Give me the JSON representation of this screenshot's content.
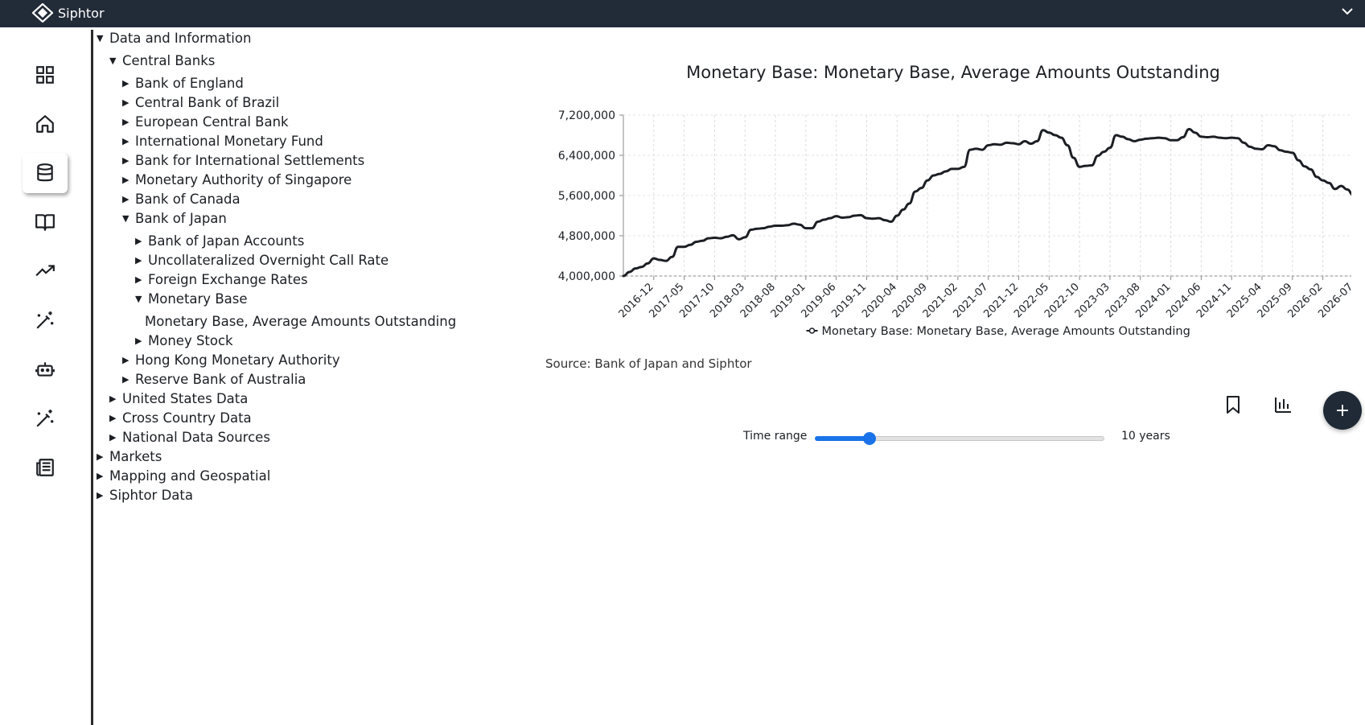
{
  "app": {
    "name": "Siphtor"
  },
  "sidebar": {
    "items": [
      {
        "icon": "grid-icon",
        "active": false
      },
      {
        "icon": "home-icon",
        "active": false
      },
      {
        "icon": "database-icon",
        "active": true
      },
      {
        "icon": "book-open-icon",
        "active": false
      },
      {
        "icon": "trending-up-icon",
        "active": false
      },
      {
        "icon": "magic-wand-icon",
        "active": false
      },
      {
        "icon": "robot-icon",
        "active": false
      },
      {
        "icon": "magic-wand-icon",
        "active": false
      },
      {
        "icon": "newspaper-icon",
        "active": false
      }
    ]
  },
  "tree": [
    {
      "label": "Data and Information",
      "depth": 0,
      "expanded": true,
      "leaf": false
    },
    {
      "label": "Central Banks",
      "depth": 1,
      "expanded": true,
      "leaf": false
    },
    {
      "label": "Bank of England",
      "depth": 2,
      "expanded": false,
      "leaf": false
    },
    {
      "label": "Central Bank of Brazil",
      "depth": 2,
      "expanded": false,
      "leaf": false
    },
    {
      "label": "European Central Bank",
      "depth": 2,
      "expanded": false,
      "leaf": false
    },
    {
      "label": "International Monetary Fund",
      "depth": 2,
      "expanded": false,
      "leaf": false
    },
    {
      "label": "Bank for International Settlements",
      "depth": 2,
      "expanded": false,
      "leaf": false
    },
    {
      "label": "Monetary Authority of Singapore",
      "depth": 2,
      "expanded": false,
      "leaf": false
    },
    {
      "label": "Bank of Canada",
      "depth": 2,
      "expanded": false,
      "leaf": false
    },
    {
      "label": "Bank of Japan",
      "depth": 2,
      "expanded": true,
      "leaf": false
    },
    {
      "label": "Bank of Japan Accounts",
      "depth": 3,
      "expanded": false,
      "leaf": false
    },
    {
      "label": "Uncollateralized Overnight Call Rate",
      "depth": 3,
      "expanded": false,
      "leaf": false
    },
    {
      "label": "Foreign Exchange Rates",
      "depth": 3,
      "expanded": false,
      "leaf": false
    },
    {
      "label": "Monetary Base",
      "depth": 3,
      "expanded": true,
      "leaf": false
    },
    {
      "label": "Monetary Base, Average Amounts Outstanding",
      "depth": 4,
      "expanded": false,
      "leaf": true
    },
    {
      "label": "Money Stock",
      "depth": 3,
      "expanded": false,
      "leaf": false
    },
    {
      "label": "Hong Kong Monetary Authority",
      "depth": 2,
      "expanded": false,
      "leaf": false
    },
    {
      "label": "Reserve Bank of Australia",
      "depth": 2,
      "expanded": false,
      "leaf": false
    },
    {
      "label": "United States Data",
      "depth": 1,
      "expanded": false,
      "leaf": false
    },
    {
      "label": "Cross Country Data",
      "depth": 1,
      "expanded": false,
      "leaf": false
    },
    {
      "label": "National Data Sources",
      "depth": 1,
      "expanded": false,
      "leaf": false
    },
    {
      "label": "Markets",
      "depth": 0,
      "expanded": false,
      "leaf": false
    },
    {
      "label": "Mapping and Geospatial",
      "depth": 0,
      "expanded": false,
      "leaf": false
    },
    {
      "label": "Siphtor Data",
      "depth": 0,
      "expanded": false,
      "leaf": false
    }
  ],
  "chart": {
    "source": "Source: Bank of Japan and Siphtor"
  },
  "controls": {
    "time_range_label": "Time range",
    "time_range_value": "10 years",
    "time_range_fraction": 0.19,
    "bookmark_icon": "bookmark-icon",
    "chart_icon": "bar-chart-icon",
    "add_icon": "plus-icon"
  },
  "colors": {
    "topbar": "#222b38",
    "line": "#1b1f24",
    "slider": "#1a73e8",
    "fab": "#1f2a36"
  },
  "chart_data": {
    "type": "line",
    "title": "Monetary Base: Monetary Base, Average Amounts Outstanding",
    "xlabel": "",
    "ylabel": "",
    "ylim": [
      4000000,
      7200000
    ],
    "yticks": [
      "4,000,000",
      "4,800,000",
      "5,600,000",
      "6,400,000",
      "7,200,000"
    ],
    "xticks": [
      "2016-12",
      "2017-05",
      "2017-10",
      "2018-03",
      "2018-08",
      "2019-01",
      "2019-06",
      "2019-11",
      "2020-04",
      "2020-09",
      "2021-02",
      "2021-07",
      "2021-12",
      "2022-05",
      "2022-10",
      "2023-03",
      "2023-08",
      "2024-01",
      "2024-06",
      "2024-11",
      "2025-04",
      "2025-09",
      "2026-02",
      "2026-07"
    ],
    "grid": "vertical-dashed",
    "legend": "bottom-center",
    "series": [
      {
        "name": "Monetary Base: Monetary Base, Average Amounts Outstanding",
        "x": [
          "2016-07",
          "2016-08",
          "2016-09",
          "2016-10",
          "2016-11",
          "2016-12",
          "2017-01",
          "2017-02",
          "2017-03",
          "2017-04",
          "2017-05",
          "2017-06",
          "2017-07",
          "2017-08",
          "2017-09",
          "2017-10",
          "2017-11",
          "2017-12",
          "2018-01",
          "2018-02",
          "2018-03",
          "2018-04",
          "2018-05",
          "2018-06",
          "2018-07",
          "2018-08",
          "2018-09",
          "2018-10",
          "2018-11",
          "2018-12",
          "2019-01",
          "2019-02",
          "2019-03",
          "2019-04",
          "2019-05",
          "2019-06",
          "2019-07",
          "2019-08",
          "2019-09",
          "2019-10",
          "2019-11",
          "2019-12",
          "2020-01",
          "2020-02",
          "2020-03",
          "2020-04",
          "2020-05",
          "2020-06",
          "2020-07",
          "2020-08",
          "2020-09",
          "2020-10",
          "2020-11",
          "2020-12",
          "2021-01",
          "2021-02",
          "2021-03",
          "2021-04",
          "2021-05",
          "2021-06",
          "2021-07",
          "2021-08",
          "2021-09",
          "2021-10",
          "2021-11",
          "2021-12",
          "2022-01",
          "2022-02",
          "2022-03",
          "2022-04",
          "2022-05",
          "2022-06",
          "2022-07",
          "2022-08",
          "2022-09",
          "2022-10",
          "2022-11",
          "2022-12",
          "2023-01",
          "2023-02",
          "2023-03",
          "2023-04",
          "2023-05",
          "2023-06",
          "2023-07",
          "2023-08",
          "2023-09",
          "2023-10",
          "2023-11",
          "2023-12",
          "2024-01",
          "2024-02",
          "2024-03",
          "2024-04",
          "2024-05",
          "2024-06",
          "2024-07",
          "2024-08",
          "2024-09",
          "2024-10",
          "2024-11",
          "2024-12",
          "2025-01",
          "2025-02",
          "2025-03",
          "2025-04",
          "2025-05",
          "2025-06",
          "2025-07",
          "2025-08",
          "2025-09",
          "2025-10",
          "2025-11",
          "2025-12",
          "2026-01",
          "2026-02",
          "2026-03",
          "2026-04",
          "2026-05",
          "2026-06",
          "2026-07",
          "2026-08"
        ],
        "values": [
          4000000,
          4080000,
          4150000,
          4180000,
          4250000,
          4350000,
          4320000,
          4300000,
          4380000,
          4580000,
          4580000,
          4620000,
          4680000,
          4700000,
          4750000,
          4760000,
          4750000,
          4780000,
          4810000,
          4730000,
          4770000,
          4920000,
          4940000,
          4950000,
          4980000,
          5000000,
          5000000,
          5010000,
          5040000,
          5020000,
          4950000,
          4950000,
          5080000,
          5120000,
          5150000,
          5190000,
          5160000,
          5170000,
          5200000,
          5210000,
          5150000,
          5140000,
          5150000,
          5110000,
          5080000,
          5200000,
          5320000,
          5440000,
          5680000,
          5750000,
          5900000,
          6000000,
          6030000,
          6080000,
          6130000,
          6130000,
          6170000,
          6510000,
          6530000,
          6510000,
          6600000,
          6620000,
          6610000,
          6650000,
          6640000,
          6620000,
          6680000,
          6630000,
          6680000,
          6900000,
          6850000,
          6800000,
          6750000,
          6600000,
          6350000,
          6170000,
          6190000,
          6200000,
          6390000,
          6470000,
          6550000,
          6800000,
          6770000,
          6720000,
          6680000,
          6710000,
          6730000,
          6740000,
          6750000,
          6740000,
          6700000,
          6700000,
          6760000,
          6920000,
          6850000,
          6770000,
          6760000,
          6770000,
          6750000,
          6740000,
          6750000,
          6740000,
          6650000,
          6570000,
          6530000,
          6520000,
          6600000,
          6580000,
          6500000,
          6470000,
          6450000,
          6300000,
          6180000,
          6120000,
          5970000,
          5900000,
          5850000,
          5730000,
          5790000,
          5720000,
          5610000,
          5570000
        ]
      }
    ]
  }
}
